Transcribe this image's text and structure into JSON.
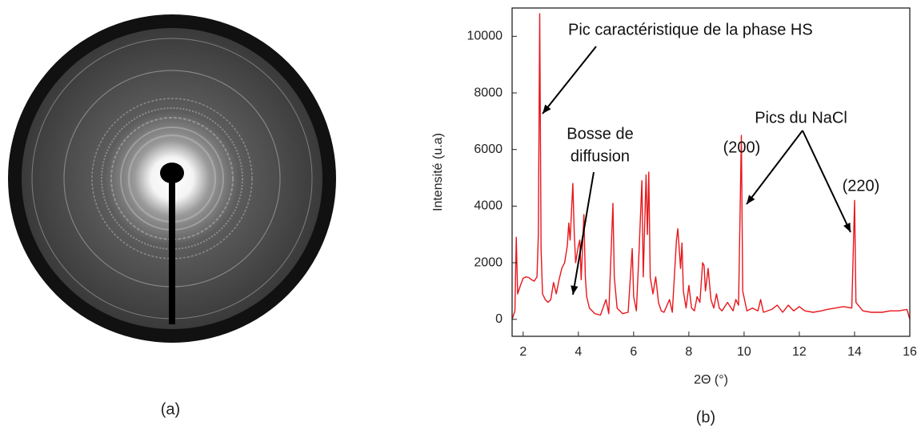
{
  "image_panel": {
    "label": "(a)"
  },
  "chart_data": {
    "type": "line",
    "panel_label": "(b)",
    "xlabel": "2Θ (°)",
    "ylabel": "Intensité (u.a)",
    "annotations": [
      "Pic caractéristique de la phase HS",
      "Bosse de",
      "diffusion",
      "Pics du NaCl",
      "(200)",
      "(220)"
    ],
    "xlim": [
      1.6,
      16
    ],
    "xticks": [
      2,
      4,
      6,
      8,
      10,
      12,
      14,
      16
    ],
    "ylim": [
      -600,
      11000
    ],
    "yticks": [
      0,
      2000,
      4000,
      6000,
      8000,
      10000
    ],
    "x": [
      1.6,
      1.7,
      1.75,
      1.8,
      1.9,
      2.0,
      2.1,
      2.2,
      2.3,
      2.4,
      2.5,
      2.55,
      2.6,
      2.65,
      2.7,
      2.8,
      2.9,
      3.0,
      3.1,
      3.2,
      3.3,
      3.4,
      3.5,
      3.6,
      3.65,
      3.7,
      3.8,
      3.85,
      3.9,
      4.0,
      4.05,
      4.1,
      4.2,
      4.25,
      4.3,
      4.4,
      4.6,
      4.8,
      5.0,
      5.1,
      5.25,
      5.3,
      5.4,
      5.6,
      5.8,
      5.95,
      6.0,
      6.1,
      6.2,
      6.3,
      6.35,
      6.45,
      6.5,
      6.55,
      6.6,
      6.7,
      6.8,
      6.9,
      7.0,
      7.1,
      7.3,
      7.4,
      7.55,
      7.6,
      7.7,
      7.75,
      7.8,
      7.9,
      8.0,
      8.1,
      8.2,
      8.3,
      8.4,
      8.5,
      8.55,
      8.6,
      8.7,
      8.8,
      8.9,
      9.0,
      9.1,
      9.2,
      9.4,
      9.6,
      9.7,
      9.8,
      9.9,
      9.95,
      10.1,
      10.3,
      10.5,
      10.6,
      10.7,
      11.0,
      11.2,
      11.4,
      11.6,
      11.8,
      12.0,
      12.2,
      12.5,
      12.8,
      13.0,
      13.3,
      13.6,
      13.9,
      14.0,
      14.05,
      14.3,
      14.6,
      15.0,
      15.3,
      15.6,
      15.9,
      16.0
    ],
    "series": [
      {
        "color": "#e8161b",
        "values": [
          0,
          300,
          2900,
          900,
          1200,
          1450,
          1500,
          1480,
          1400,
          1350,
          1500,
          3000,
          10800,
          2500,
          900,
          700,
          600,
          700,
          1300,
          900,
          1400,
          1800,
          2000,
          2600,
          3400,
          2800,
          4800,
          3000,
          2000,
          2600,
          2800,
          1400,
          3700,
          1500,
          800,
          400,
          200,
          150,
          700,
          200,
          4100,
          1500,
          400,
          200,
          250,
          2500,
          800,
          300,
          2500,
          4900,
          1500,
          5100,
          3000,
          5200,
          1500,
          900,
          1500,
          600,
          300,
          250,
          700,
          250,
          2800,
          3200,
          1800,
          2700,
          1000,
          400,
          1200,
          400,
          300,
          800,
          600,
          2000,
          1900,
          1000,
          1800,
          700,
          400,
          900,
          400,
          300,
          600,
          300,
          700,
          500,
          6500,
          1000,
          300,
          400,
          300,
          700,
          250,
          350,
          500,
          250,
          500,
          300,
          450,
          300,
          250,
          300,
          350,
          400,
          450,
          400,
          4200,
          600,
          300,
          250,
          250,
          300,
          300,
          350,
          0
        ]
      }
    ]
  }
}
